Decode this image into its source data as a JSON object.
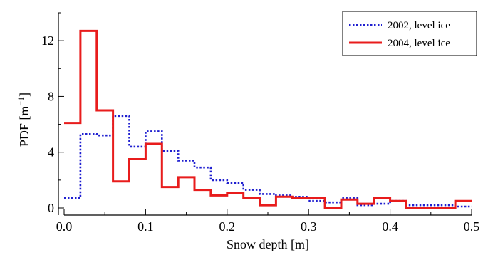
{
  "chart_data": {
    "type": "line",
    "step": true,
    "title": "",
    "xlabel": "Snow depth [m]",
    "ylabel_main": "PDF [m",
    "ylabel_sup": "−1",
    "ylabel_close": "]",
    "xlim": [
      0,
      0.5
    ],
    "ylim": [
      0,
      14
    ],
    "xticks": [
      0.0,
      0.1,
      0.2,
      0.3,
      0.4,
      0.5
    ],
    "xtick_labels": [
      "0.0",
      "0.1",
      "0.2",
      "0.3",
      "0.4",
      "0.5"
    ],
    "yticks": [
      0,
      4,
      8,
      12
    ],
    "ytick_labels": [
      "0",
      "4",
      "8",
      "12"
    ],
    "legend_position": "top-right",
    "grid": false,
    "bin_edges": [
      0.0,
      0.02,
      0.04,
      0.06,
      0.08,
      0.1,
      0.12,
      0.14,
      0.16,
      0.18,
      0.2,
      0.22,
      0.24,
      0.26,
      0.28,
      0.3,
      0.32,
      0.34,
      0.36,
      0.38,
      0.4,
      0.42,
      0.44,
      0.46,
      0.48,
      0.5
    ],
    "series": [
      {
        "name": "2002, level ice",
        "color": "#1f1fd0",
        "style": "dotted",
        "values": [
          0.7,
          5.3,
          5.2,
          6.6,
          4.4,
          5.5,
          4.1,
          3.4,
          2.9,
          2.0,
          1.8,
          1.3,
          1.0,
          0.9,
          0.8,
          0.5,
          0.4,
          0.7,
          0.2,
          0.3,
          0.5,
          0.2,
          0.2,
          0.2,
          0.1
        ]
      },
      {
        "name": "2004, level ice",
        "color": "#e81c1c",
        "style": "solid",
        "values": [
          6.1,
          12.7,
          7.0,
          1.9,
          3.5,
          4.6,
          1.5,
          2.2,
          1.3,
          0.9,
          1.1,
          0.7,
          0.2,
          0.8,
          0.7,
          0.7,
          0.0,
          0.6,
          0.3,
          0.7,
          0.5,
          0.0,
          0.0,
          0.0,
          0.5
        ]
      }
    ]
  }
}
